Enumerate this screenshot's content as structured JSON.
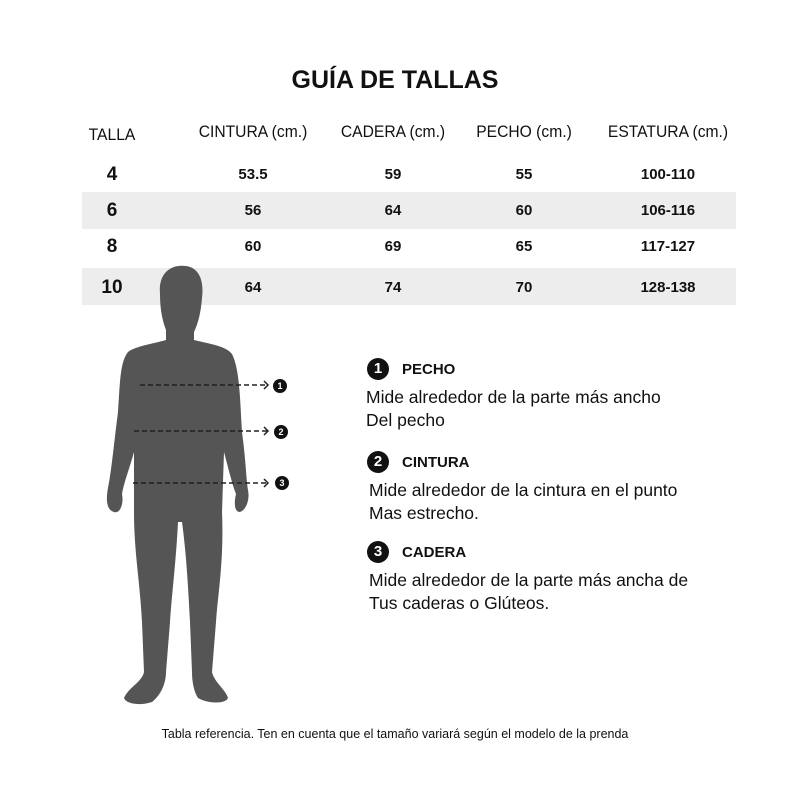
{
  "title": "GUÍA DE TALLAS",
  "table": {
    "headers": [
      "TALLA",
      "CINTURA (cm.)",
      "CADERA (cm.)",
      "PECHO (cm.)",
      "ESTATURA (cm.)"
    ],
    "rows": [
      [
        "4",
        "53.5",
        "59",
        "55",
        "100-110"
      ],
      [
        "6",
        "56",
        "64",
        "60",
        "106-116"
      ],
      [
        "8",
        "60",
        "69",
        "65",
        "117-127"
      ],
      [
        "10",
        "64",
        "74",
        "70",
        "128-138"
      ]
    ]
  },
  "figure": {
    "icon": "human-silhouette-icon",
    "color": "#555555"
  },
  "legend": [
    {
      "number": "1",
      "title": "PECHO",
      "lines": [
        "Mide alrededor de la parte más ancho",
        "Del pecho"
      ]
    },
    {
      "number": "2",
      "title": "CINTURA",
      "lines": [
        "Mide alrededor de la cintura en el punto",
        "Mas estrecho."
      ]
    },
    {
      "number": "3",
      "title": "CADERA",
      "lines": [
        "Mide alrededor de la parte más ancha de",
        "Tus caderas o Glúteos."
      ]
    }
  ],
  "footer": "Tabla referencia. Ten en cuenta que el tamaño variará según el modelo de la prenda"
}
